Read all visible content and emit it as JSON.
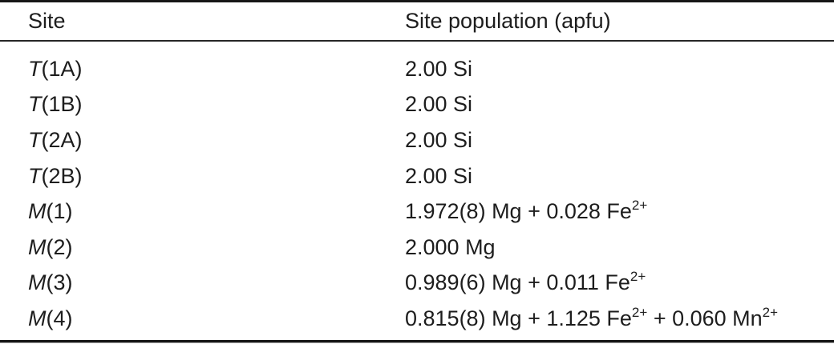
{
  "colors": {
    "rule_heavy": "#161616",
    "rule_header": "#262626",
    "text": "#1d1d1d",
    "background": "#ffffff"
  },
  "table": {
    "columns": [
      {
        "key": "site",
        "label": "Site"
      },
      {
        "key": "population",
        "label": "Site population (apfu)"
      }
    ],
    "rows": [
      {
        "site_prefix": "T",
        "site_rest": "(1A)",
        "population": [
          {
            "text": "2.00 Si"
          }
        ]
      },
      {
        "site_prefix": "T",
        "site_rest": "(1B)",
        "population": [
          {
            "text": "2.00 Si"
          }
        ]
      },
      {
        "site_prefix": "T",
        "site_rest": "(2A)",
        "population": [
          {
            "text": "2.00 Si"
          }
        ]
      },
      {
        "site_prefix": "T",
        "site_rest": "(2B)",
        "population": [
          {
            "text": "2.00 Si"
          }
        ]
      },
      {
        "site_prefix": "M",
        "site_rest": "(1)",
        "population": [
          {
            "text": "1.972(8) Mg + 0.028 Fe"
          },
          {
            "sup": "2+"
          }
        ]
      },
      {
        "site_prefix": "M",
        "site_rest": "(2)",
        "population": [
          {
            "text": "2.000 Mg"
          }
        ]
      },
      {
        "site_prefix": "M",
        "site_rest": "(3)",
        "population": [
          {
            "text": "0.989(6) Mg + 0.011 Fe"
          },
          {
            "sup": "2+"
          }
        ]
      },
      {
        "site_prefix": "M",
        "site_rest": "(4)",
        "population": [
          {
            "text": "0.815(8) Mg + 1.125 Fe"
          },
          {
            "sup": "2+"
          },
          {
            "text": " + 0.060 Mn"
          },
          {
            "sup": "2+"
          }
        ]
      }
    ]
  }
}
